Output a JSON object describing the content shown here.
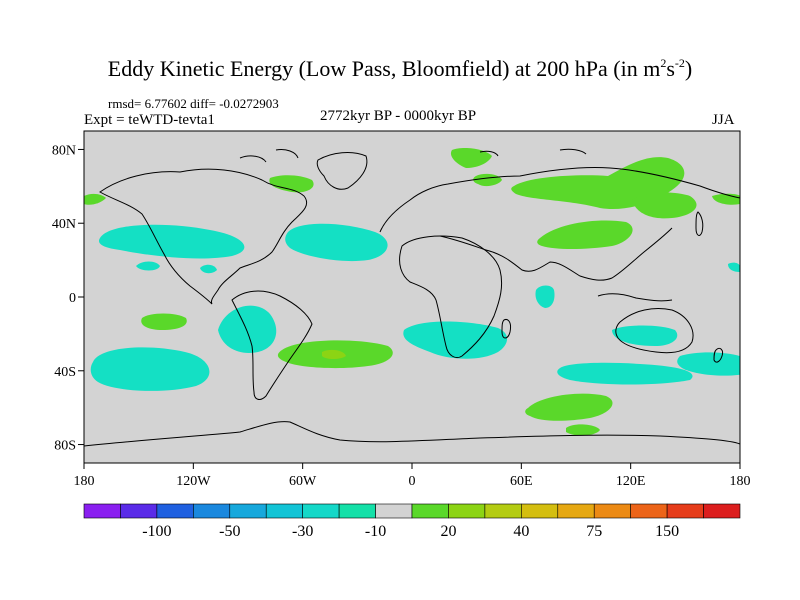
{
  "title": {
    "main": "Eddy Kinetic Energy (Low Pass, Bloomfield) at 200 hPa (in m",
    "sup1": "2",
    "mid": "s",
    "sup2": "-2",
    "close": ")"
  },
  "stats": "rmsd= 6.77602 diff= -0.0272903",
  "experiment": "Expt = teWTD-tevta1",
  "period": "2772kyr BP - 0000kyr BP",
  "season": "JJA",
  "lat_labels": [
    "80N",
    "40N",
    "0",
    "40S",
    "80S"
  ],
  "lon_labels": [
    "180",
    "120W",
    "60W",
    "0",
    "60E",
    "120E",
    "180"
  ],
  "colorbar": {
    "colors": [
      "#8a1ff0",
      "#5a2be8",
      "#1f60e0",
      "#1a88de",
      "#17a8dc",
      "#12c4d6",
      "#14d8c8",
      "#14e0a8",
      "#d3d3d3",
      "#5ad82a",
      "#8cd414",
      "#b4cc12",
      "#d4be10",
      "#e6a812",
      "#ec8a14",
      "#ec6418",
      "#e63c1a",
      "#dc1e1e"
    ],
    "labels": [
      "-100",
      "-50",
      "-30",
      "-10",
      "20",
      "40",
      "75",
      "150"
    ]
  },
  "colors": {
    "land_ocean_default": "#d3d3d3",
    "negative_anomaly": "#14e0c4",
    "positive_anomaly": "#5ad82a",
    "strong_positive": "#8cd414"
  }
}
